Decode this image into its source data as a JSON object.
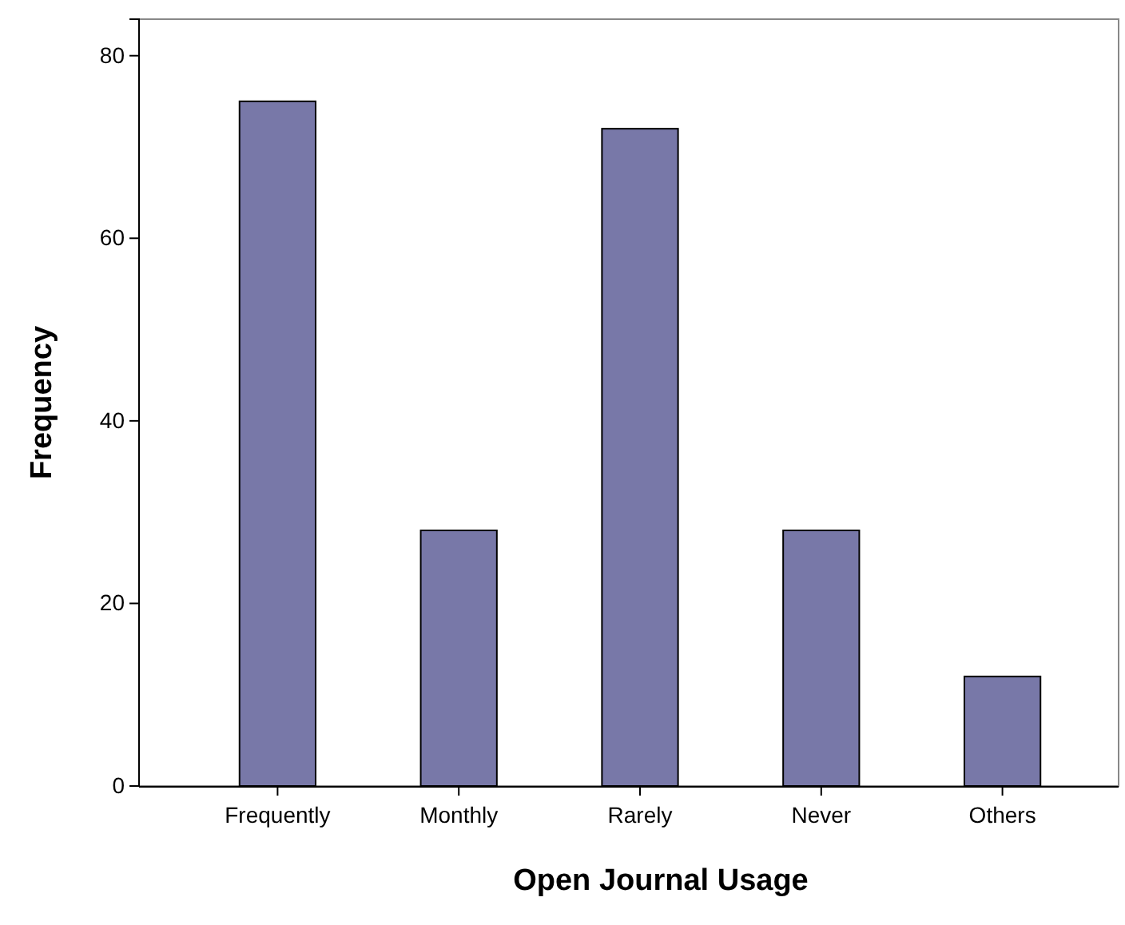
{
  "chart_data": {
    "type": "bar",
    "xlabel": "Open Journal Usage",
    "ylabel": "Frequency",
    "categories": [
      "Frequently",
      "Monthly",
      "Rarely",
      "Never",
      "Others"
    ],
    "values": [
      75,
      28,
      72,
      28,
      12
    ],
    "color": "#7878a8",
    "ylim": [
      0,
      84
    ],
    "yticks": [
      0,
      20,
      40,
      60,
      80
    ],
    "grid": false
  }
}
